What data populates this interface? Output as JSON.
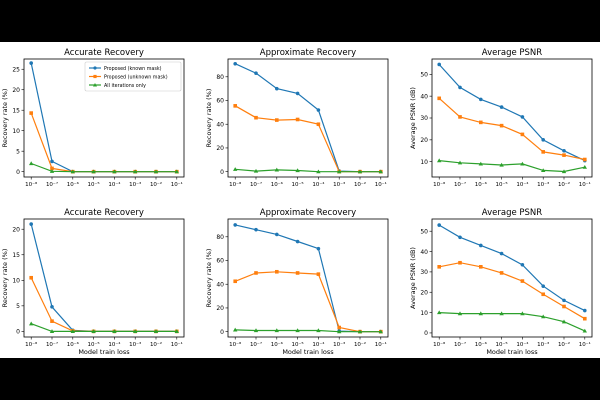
{
  "colors": {
    "proposed_known": "#1f77b4",
    "proposed_unknown": "#ff7f0e",
    "all_iterations": "#2ca02c"
  },
  "chart_data": [
    {
      "type": "line",
      "title": "Accurate Recovery",
      "xlabel": "",
      "ylabel": "Recovery rate (%)",
      "x_ticks": [
        "10⁻⁸",
        "10⁻⁷",
        "10⁻⁶",
        "10⁻⁵",
        "10⁻⁴",
        "10⁻³",
        "10⁻²",
        "10⁻¹"
      ],
      "ylim": [
        -1.3,
        27.5
      ],
      "y_ticks": [
        "0",
        "5",
        "10",
        "15",
        "20",
        "25"
      ],
      "y_tick_values": [
        0,
        5,
        10,
        15,
        20,
        25
      ],
      "legend": "top-right",
      "series": [
        {
          "name": "Proposed (known mask)",
          "color_key": "proposed_known",
          "marker": "circle",
          "values": [
            26.5,
            2.5,
            0,
            0,
            0,
            0,
            0,
            0
          ]
        },
        {
          "name": "Proposed (unknown mask)",
          "color_key": "proposed_unknown",
          "marker": "square",
          "values": [
            14.3,
            0.8,
            0,
            0,
            0,
            0,
            0,
            0
          ]
        },
        {
          "name": "All iterations only",
          "color_key": "all_iterations",
          "marker": "triangle",
          "values": [
            2.0,
            0.1,
            0,
            0,
            0,
            0,
            0,
            0
          ]
        }
      ]
    },
    {
      "type": "line",
      "title": "Approximate Recovery",
      "xlabel": "",
      "ylabel": "Recovery rate (%)",
      "x_ticks": [
        "10⁻⁸",
        "10⁻⁷",
        "10⁻⁶",
        "10⁻⁵",
        "10⁻⁴",
        "10⁻³",
        "10⁻²",
        "10⁻¹"
      ],
      "ylim": [
        -4.5,
        95
      ],
      "y_ticks": [
        "0",
        "20",
        "40",
        "60",
        "80"
      ],
      "y_tick_values": [
        0,
        20,
        40,
        60,
        80
      ],
      "series": [
        {
          "name": "Proposed (known mask)",
          "color_key": "proposed_known",
          "marker": "circle",
          "values": [
            91,
            83,
            70,
            66,
            52,
            0.5,
            0,
            0
          ]
        },
        {
          "name": "Proposed (unknown mask)",
          "color_key": "proposed_unknown",
          "marker": "square",
          "values": [
            55.5,
            45.5,
            43.5,
            44,
            40,
            0,
            0,
            0
          ]
        },
        {
          "name": "All iterations only",
          "color_key": "all_iterations",
          "marker": "triangle",
          "values": [
            2,
            0.5,
            1.5,
            1,
            0,
            0,
            0,
            0
          ]
        }
      ]
    },
    {
      "type": "line",
      "title": "Average PSNR",
      "xlabel": "",
      "ylabel": "Average PSNR (dB)",
      "x_ticks": [
        "10⁻⁸",
        "10⁻⁷",
        "10⁻⁶",
        "10⁻⁵",
        "10⁻⁴",
        "10⁻³",
        "10⁻²",
        "10⁻¹"
      ],
      "ylim": [
        3,
        57
      ],
      "y_ticks": [
        "10",
        "20",
        "30",
        "40",
        "50"
      ],
      "y_tick_values": [
        10,
        20,
        30,
        40,
        50
      ],
      "series": [
        {
          "name": "Proposed (known mask)",
          "color_key": "proposed_known",
          "marker": "circle",
          "values": [
            54.5,
            44,
            38.5,
            35,
            30.5,
            20,
            15,
            10.5
          ]
        },
        {
          "name": "Proposed (unknown mask)",
          "color_key": "proposed_unknown",
          "marker": "square",
          "values": [
            39,
            30.5,
            28,
            26.5,
            22.5,
            14.5,
            13,
            11
          ]
        },
        {
          "name": "All iterations only",
          "color_key": "all_iterations",
          "marker": "triangle",
          "values": [
            10.5,
            9.5,
            9,
            8.5,
            9,
            6,
            5.5,
            7.5
          ]
        }
      ]
    },
    {
      "type": "line",
      "title": "Accurate Recovery",
      "xlabel": "Model train loss",
      "ylabel": "Recovery rate (%)",
      "x_ticks": [
        "10⁻⁸",
        "10⁻⁷",
        "10⁻⁶",
        "10⁻⁵",
        "10⁻⁴",
        "10⁻³",
        "10⁻²",
        "10⁻¹"
      ],
      "ylim": [
        -1.1,
        22
      ],
      "y_ticks": [
        "0",
        "5",
        "10",
        "15",
        "20"
      ],
      "y_tick_values": [
        0,
        5,
        10,
        15,
        20
      ],
      "series": [
        {
          "name": "Proposed (known mask)",
          "color_key": "proposed_known",
          "marker": "circle",
          "values": [
            21,
            4.8,
            0.2,
            0,
            0,
            0,
            0,
            0
          ]
        },
        {
          "name": "Proposed (unknown mask)",
          "color_key": "proposed_unknown",
          "marker": "square",
          "values": [
            10.5,
            2.0,
            0.1,
            0,
            0,
            0,
            0,
            0
          ]
        },
        {
          "name": "All iterations only",
          "color_key": "all_iterations",
          "marker": "triangle",
          "values": [
            1.5,
            0,
            0,
            0,
            0,
            0,
            0,
            0
          ]
        }
      ]
    },
    {
      "type": "line",
      "title": "Approximate Recovery",
      "xlabel": "Model train loss",
      "ylabel": "Recovery rate (%)",
      "x_ticks": [
        "10⁻⁸",
        "10⁻⁷",
        "10⁻⁶",
        "10⁻⁵",
        "10⁻⁴",
        "10⁻³",
        "10⁻²",
        "10⁻¹"
      ],
      "ylim": [
        -4.5,
        95
      ],
      "y_ticks": [
        "0",
        "20",
        "40",
        "60",
        "80"
      ],
      "y_tick_values": [
        0,
        20,
        40,
        60,
        80
      ],
      "series": [
        {
          "name": "Proposed (known mask)",
          "color_key": "proposed_known",
          "marker": "circle",
          "values": [
            90,
            86,
            82,
            76,
            70,
            0.5,
            0,
            0
          ]
        },
        {
          "name": "Proposed (unknown mask)",
          "color_key": "proposed_unknown",
          "marker": "square",
          "values": [
            42.5,
            49.5,
            50.5,
            49.5,
            48.5,
            3.5,
            0,
            0
          ]
        },
        {
          "name": "All iterations only",
          "color_key": "all_iterations",
          "marker": "triangle",
          "values": [
            1.5,
            1,
            1,
            1,
            1,
            0,
            0,
            0
          ]
        }
      ]
    },
    {
      "type": "line",
      "title": "Average PSNR",
      "xlabel": "Model train loss",
      "ylabel": "Average PSNR (dB)",
      "x_ticks": [
        "10⁻⁸",
        "10⁻⁷",
        "10⁻⁶",
        "10⁻⁵",
        "10⁻⁴",
        "10⁻³",
        "10⁻²",
        "10⁻¹"
      ],
      "ylim": [
        -2,
        56
      ],
      "y_ticks": [
        "0",
        "10",
        "20",
        "30",
        "40",
        "50"
      ],
      "y_tick_values": [
        0,
        10,
        20,
        30,
        40,
        50
      ],
      "series": [
        {
          "name": "Proposed (known mask)",
          "color_key": "proposed_known",
          "marker": "circle",
          "values": [
            53,
            47,
            43,
            39,
            33.5,
            23,
            16,
            11
          ]
        },
        {
          "name": "Proposed (unknown mask)",
          "color_key": "proposed_unknown",
          "marker": "square",
          "values": [
            32.5,
            34.5,
            32.5,
            29.5,
            25.5,
            19,
            13,
            7
          ]
        },
        {
          "name": "All iterations only",
          "color_key": "all_iterations",
          "marker": "triangle",
          "values": [
            10,
            9.5,
            9.5,
            9.5,
            9.5,
            8,
            5.5,
            1
          ]
        }
      ]
    }
  ]
}
